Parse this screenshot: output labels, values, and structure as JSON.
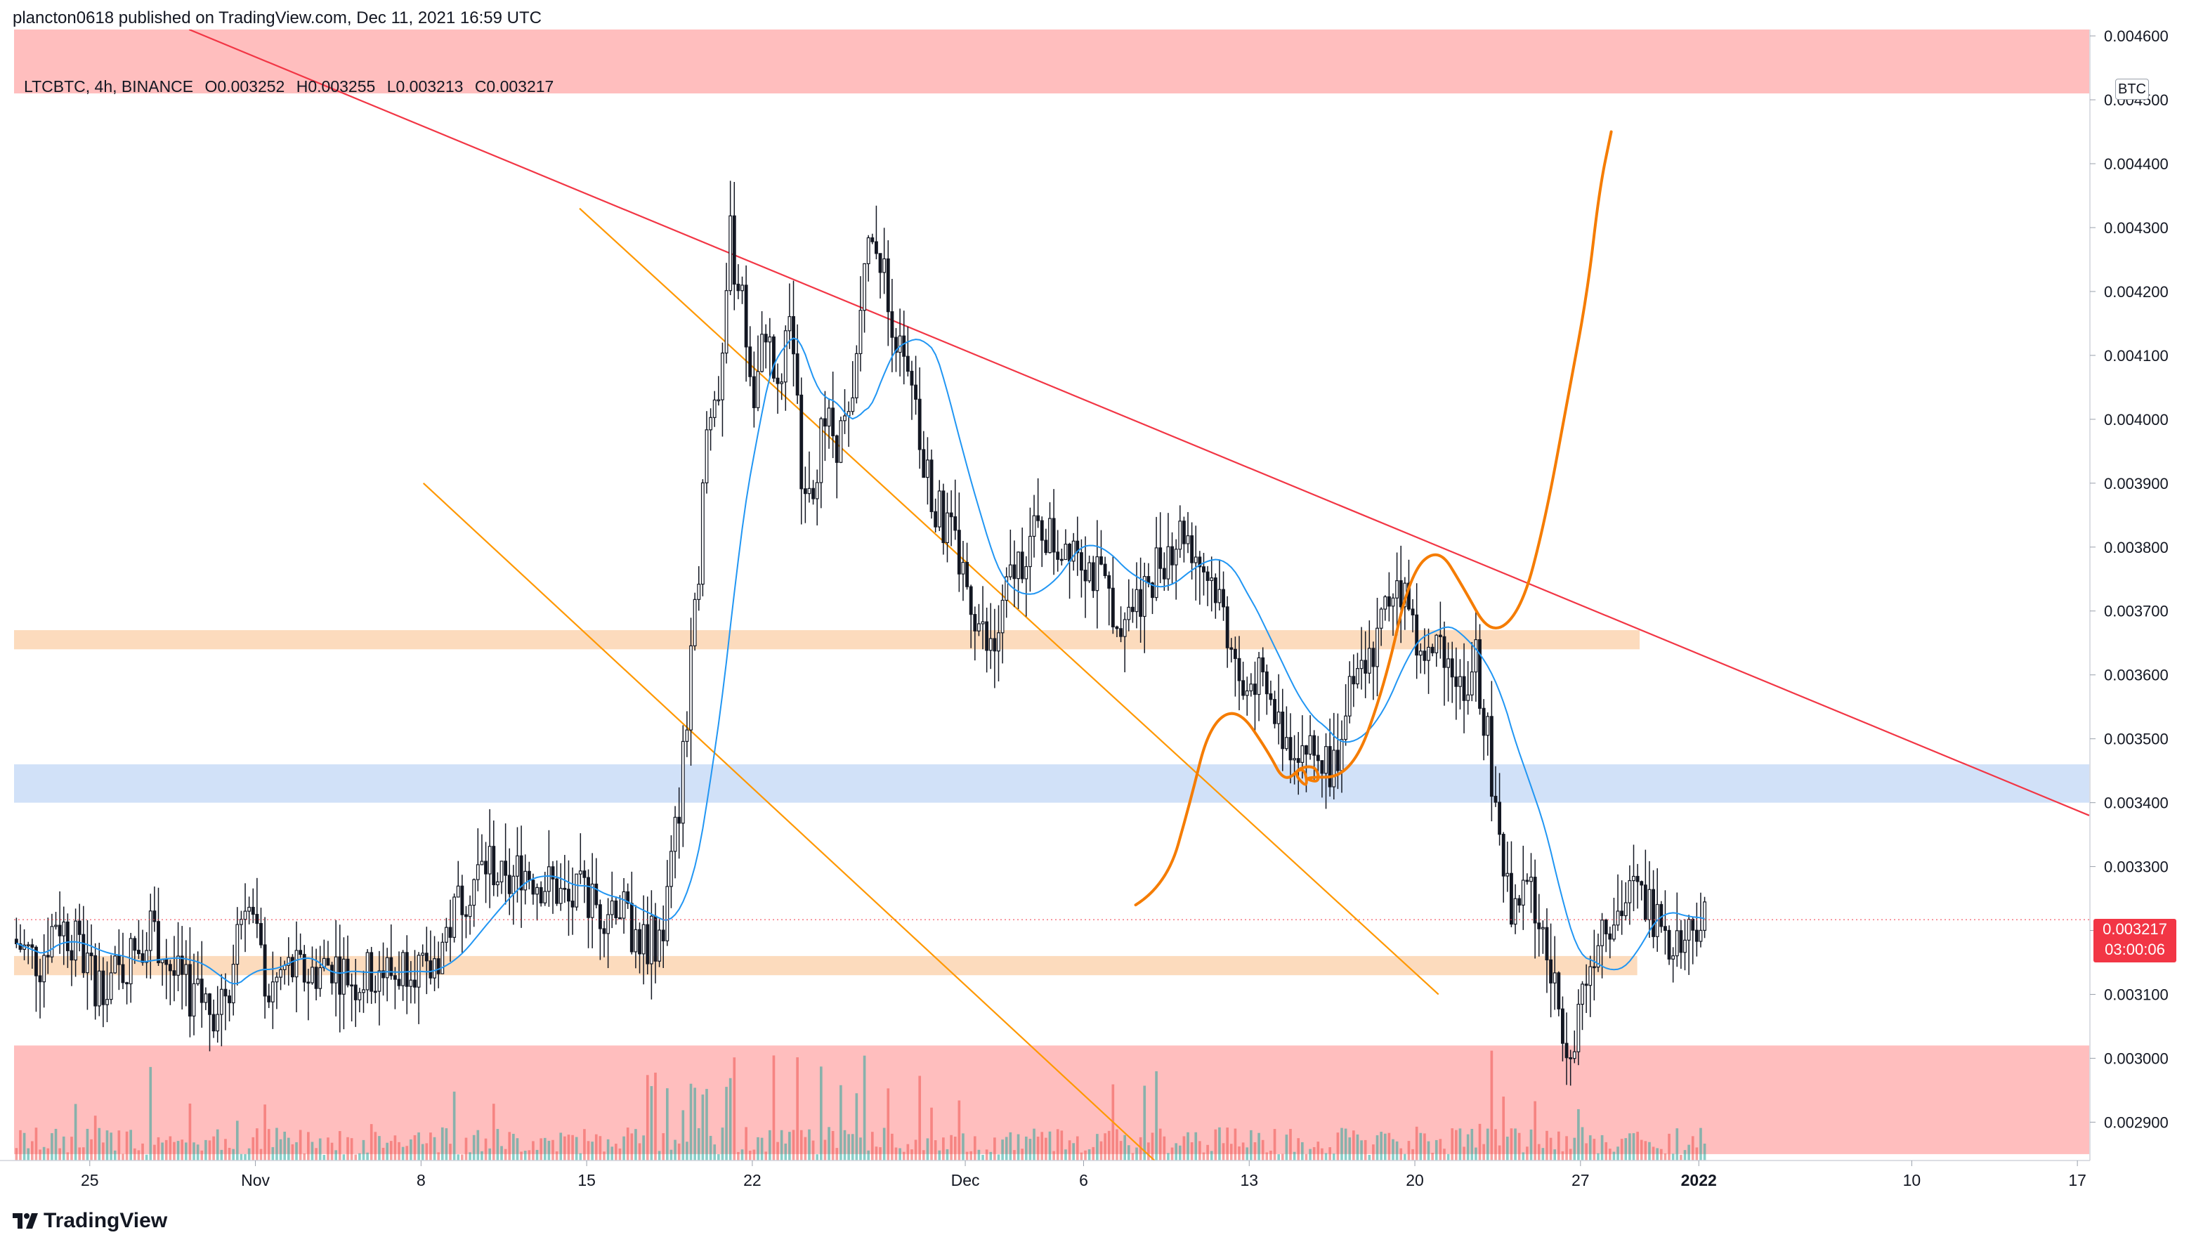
{
  "header": {
    "publisher_line": "plancton0618 published on TradingView.com, Dec 11, 2021 16:59 UTC"
  },
  "legend": {
    "symbol": "LTCBTC, 4h, BINANCE",
    "open": "O0.003252",
    "high": "H0.003255",
    "low": "L0.003213",
    "close": "C0.003217"
  },
  "price_axis": {
    "currency": "BTC",
    "last_price": "0.003217",
    "countdown": "03:00:06"
  },
  "footer": {
    "brand": "TradingView",
    "logo_icon": "tradingview-logo-icon"
  },
  "colors": {
    "up": "#26a69a",
    "down": "#ef5350",
    "candle": "#131722",
    "ma": "#2196f3",
    "resistance_zone": "#ffb3b3",
    "orange_zone": "#fcd5b2",
    "blue_zone": "#c9dcf7",
    "trendline": "#f23645",
    "channel": "#ff9800",
    "projection": "#f57c00"
  },
  "chart_data": {
    "type": "candlestick",
    "symbol": "LTCBTC",
    "interval": "4h",
    "exchange": "BINANCE",
    "ylim": [
      0.00284,
      0.00461
    ],
    "y_ticks": [
      "0.002900",
      "0.003000",
      "0.003100",
      "0.003200",
      "0.003300",
      "0.003400",
      "0.003500",
      "0.003600",
      "0.003700",
      "0.003800",
      "0.003900",
      "0.004000",
      "0.004100",
      "0.004200",
      "0.004300",
      "0.004400",
      "0.004500",
      "0.004600"
    ],
    "x_ticks": [
      {
        "label": "25",
        "day": 0
      },
      {
        "label": "Nov",
        "day": 7
      },
      {
        "label": "8",
        "day": 14
      },
      {
        "label": "15",
        "day": 21
      },
      {
        "label": "22",
        "day": 28
      },
      {
        "label": "Dec",
        "day": 37
      },
      {
        "label": "6",
        "day": 42
      },
      {
        "label": "13",
        "day": 49
      },
      {
        "label": "20",
        "day": 56
      },
      {
        "label": "27",
        "day": 63
      },
      {
        "label": "2022",
        "day": 68,
        "bold": true
      },
      {
        "label": "10",
        "day": 77
      },
      {
        "label": "17",
        "day": 84
      }
    ],
    "x_range_days": [
      -3.2,
      84.5
    ],
    "candle_start_day": -3.1,
    "candle_step_days": 0.1667,
    "close_path": [
      [
        0,
        0.00318
      ],
      [
        6,
        0.00315
      ],
      [
        10,
        0.00322
      ],
      [
        14,
        0.00319
      ],
      [
        20,
        0.00312
      ],
      [
        26,
        0.00313
      ],
      [
        30,
        0.00317
      ],
      [
        34,
        0.00321
      ],
      [
        40,
        0.00313
      ],
      [
        44,
        0.0031
      ],
      [
        50,
        0.00308
      ],
      [
        54,
        0.00312
      ],
      [
        58,
        0.00326
      ],
      [
        61,
        0.00318
      ],
      [
        64,
        0.0031
      ],
      [
        68,
        0.00314
      ],
      [
        74,
        0.00313
      ],
      [
        80,
        0.00315
      ],
      [
        86,
        0.00312
      ],
      [
        92,
        0.00314
      ],
      [
        96,
        0.00313
      ],
      [
        100,
        0.00316
      ],
      [
        104,
        0.00312
      ],
      [
        108,
        0.00318
      ],
      [
        112,
        0.00324
      ],
      [
        116,
        0.00328
      ],
      [
        120,
        0.00331
      ],
      [
        124,
        0.00326
      ],
      [
        128,
        0.0033
      ],
      [
        132,
        0.00328
      ],
      [
        136,
        0.00327
      ],
      [
        140,
        0.00324
      ],
      [
        144,
        0.00326
      ],
      [
        148,
        0.00323
      ],
      [
        152,
        0.00325
      ],
      [
        156,
        0.0032
      ],
      [
        160,
        0.00318
      ],
      [
        164,
        0.0032
      ],
      [
        168,
        0.0034
      ],
      [
        172,
        0.00368
      ],
      [
        175,
        0.00398
      ],
      [
        178,
        0.00405
      ],
      [
        181,
        0.00428
      ],
      [
        184,
        0.00418
      ],
      [
        187,
        0.00402
      ],
      [
        190,
        0.00415
      ],
      [
        193,
        0.00403
      ],
      [
        196,
        0.00418
      ],
      [
        199,
        0.00393
      ],
      [
        202,
        0.00391
      ],
      [
        205,
        0.004
      ],
      [
        208,
        0.00397
      ],
      [
        212,
        0.004
      ],
      [
        215,
        0.00425
      ],
      [
        218,
        0.00428
      ],
      [
        221,
        0.0042
      ],
      [
        224,
        0.0041
      ],
      [
        227,
        0.00403
      ],
      [
        230,
        0.00393
      ],
      [
        234,
        0.00385
      ],
      [
        238,
        0.0038
      ],
      [
        242,
        0.00372
      ],
      [
        246,
        0.00364
      ],
      [
        248,
        0.00364
      ],
      [
        252,
        0.00375
      ],
      [
        256,
        0.0038
      ],
      [
        260,
        0.00383
      ],
      [
        264,
        0.0038
      ],
      [
        268,
        0.00382
      ],
      [
        272,
        0.00377
      ],
      [
        276,
        0.00373
      ],
      [
        280,
        0.0037
      ],
      [
        284,
        0.00372
      ],
      [
        288,
        0.00376
      ],
      [
        292,
        0.0038
      ],
      [
        296,
        0.00383
      ],
      [
        300,
        0.00378
      ],
      [
        304,
        0.00374
      ],
      [
        308,
        0.00365
      ],
      [
        311,
        0.00356
      ],
      [
        314,
        0.0036
      ],
      [
        318,
        0.00355
      ],
      [
        322,
        0.0035
      ],
      [
        326,
        0.00349
      ],
      [
        330,
        0.00347
      ],
      [
        334,
        0.00346
      ],
      [
        338,
        0.00356
      ],
      [
        342,
        0.0036
      ],
      [
        346,
        0.00368
      ],
      [
        350,
        0.00376
      ],
      [
        354,
        0.00368
      ],
      [
        358,
        0.00362
      ],
      [
        362,
        0.00365
      ],
      [
        366,
        0.00358
      ],
      [
        370,
        0.00362
      ],
      [
        373,
        0.0035
      ],
      [
        376,
        0.00335
      ],
      [
        379,
        0.0032
      ],
      [
        382,
        0.0033
      ],
      [
        386,
        0.00322
      ],
      [
        390,
        0.0031
      ],
      [
        394,
        0.00302
      ],
      [
        398,
        0.00313
      ],
      [
        402,
        0.00322
      ],
      [
        406,
        0.00323
      ],
      [
        410,
        0.00326
      ],
      [
        414,
        0.00324
      ],
      [
        418,
        0.0032
      ],
      [
        422,
        0.00318
      ],
      [
        426,
        0.00322
      ],
      [
        428,
        0.003217
      ]
    ],
    "moving_average": {
      "name": "MA",
      "period": 20
    },
    "zones": [
      {
        "name": "top-resistance",
        "from": 0.00451,
        "to": 0.00461,
        "end_day": 84.5,
        "color": "#ffb3b3"
      },
      {
        "name": "bottom-support",
        "from": 0.00285,
        "to": 0.00302,
        "end_day": 84.5,
        "color": "#ffb3b3"
      },
      {
        "name": "orange-upper",
        "from": 0.00364,
        "to": 0.00367,
        "end_day": 65.5,
        "color": "#fcd5b2"
      },
      {
        "name": "blue-zone",
        "from": 0.0034,
        "to": 0.00346,
        "end_day": 84.5,
        "color": "#c9dcf7"
      },
      {
        "name": "orange-lower",
        "from": 0.00313,
        "to": 0.00316,
        "end_day": 65.4,
        "color": "#fcd5b2"
      }
    ],
    "trendlines": [
      {
        "name": "downtrend-line",
        "from": [
          4.2,
          0.00461
        ],
        "to": [
          84.5,
          0.00338
        ],
        "color": "#f23645"
      },
      {
        "name": "channel-upper",
        "from": [
          20.7,
          0.00433
        ],
        "to": [
          57.0,
          0.0031
        ],
        "color": "#ff9800"
      },
      {
        "name": "channel-lower",
        "from": [
          14.1,
          0.0039
        ],
        "to": [
          45.0,
          0.00284
        ],
        "color": "#ff9800"
      }
    ],
    "projection": [
      [
        44.2,
        0.00324
      ],
      [
        45.5,
        0.00327
      ],
      [
        46.5,
        0.0034
      ],
      [
        47.3,
        0.00352
      ],
      [
        48.5,
        0.00355
      ],
      [
        49.8,
        0.00348
      ],
      [
        50.5,
        0.00343
      ],
      [
        51.3,
        0.00346
      ],
      [
        51.5,
        0.00342
      ],
      [
        50.8,
        0.00345
      ],
      [
        51.8,
        0.00346
      ],
      [
        52.0,
        0.00343
      ],
      [
        51.2,
        0.00344
      ],
      [
        53.3,
        0.00344
      ],
      [
        54.7,
        0.00358
      ],
      [
        55.8,
        0.00376
      ],
      [
        57.0,
        0.0038
      ],
      [
        58.0,
        0.00374
      ],
      [
        59.2,
        0.00366
      ],
      [
        60.5,
        0.0037
      ],
      [
        61.5,
        0.00384
      ],
      [
        62.5,
        0.00404
      ],
      [
        63.3,
        0.0042
      ],
      [
        63.8,
        0.00436
      ],
      [
        64.3,
        0.00445
      ]
    ],
    "last_close": 0.003217
  }
}
